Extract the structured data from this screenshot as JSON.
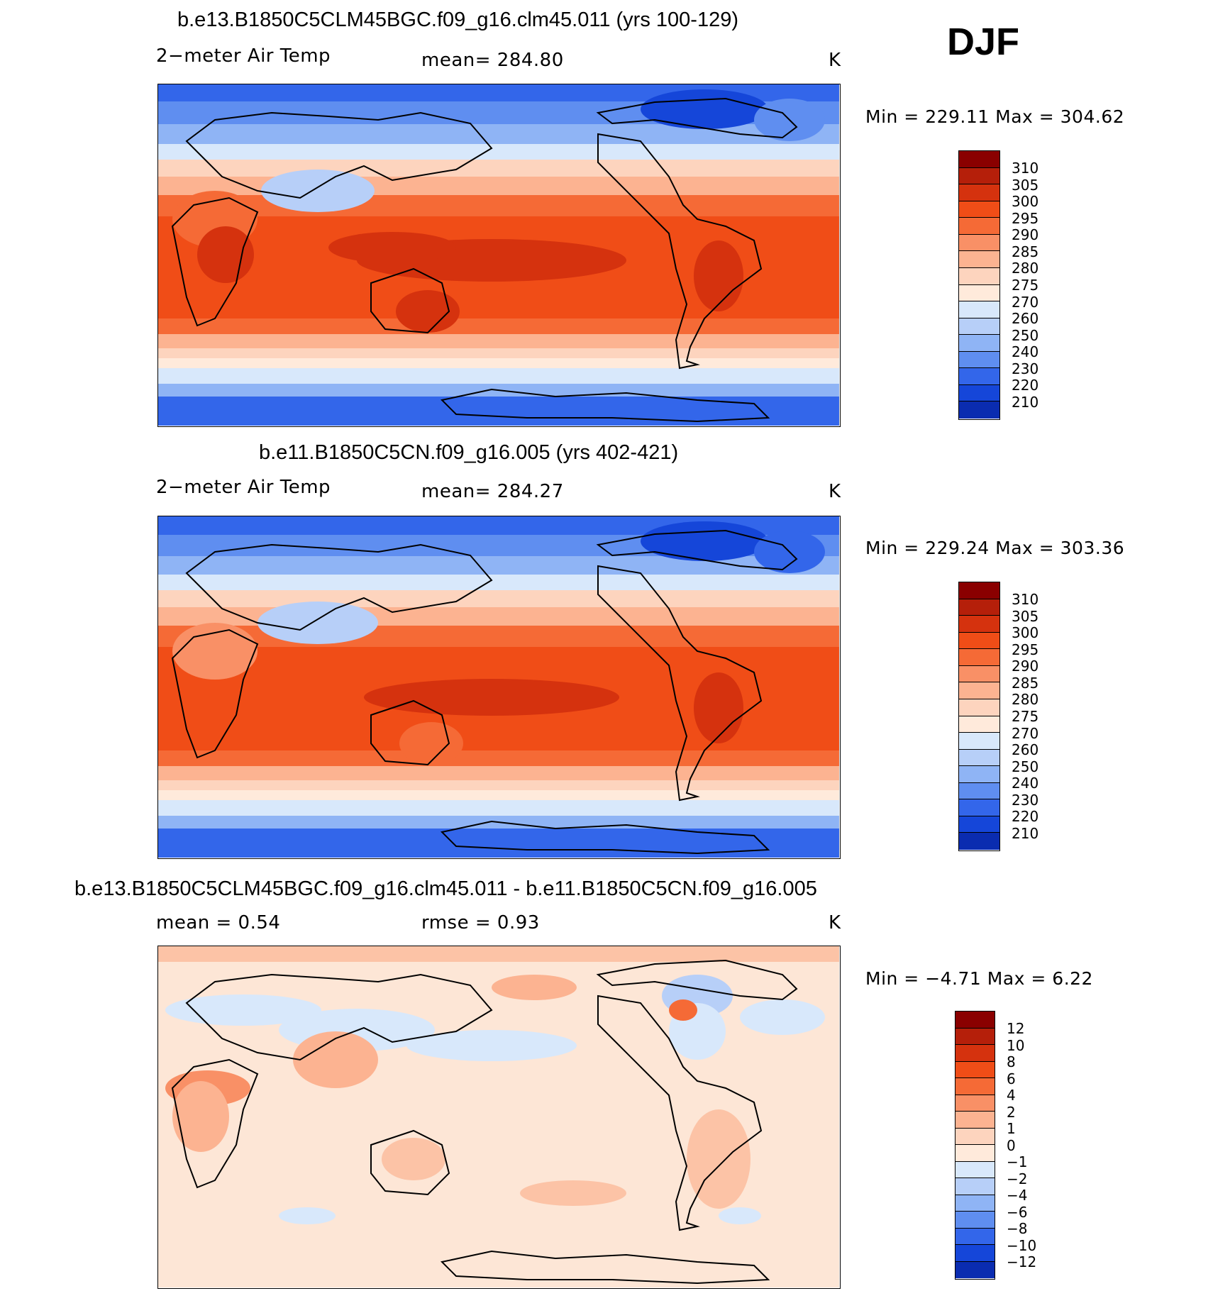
{
  "season": "DJF",
  "panels": [
    {
      "title": "b.e13.B1850C5CLM45BGC.f09_g16.clm45.011 (yrs 100-129)",
      "variable": "2−meter Air Temp",
      "mean": "mean=  284.80",
      "units": "K",
      "minmax": "Min  =  229.11  Max  =  304.62",
      "labels": [
        "310",
        "305",
        "300",
        "295",
        "290",
        "285",
        "280",
        "275",
        "270",
        "260",
        "250",
        "240",
        "230",
        "220",
        "210"
      ],
      "colors": [
        "#8a0000",
        "#b51f0a",
        "#d5320e",
        "#f04d17",
        "#f56a36",
        "#f99066",
        "#fcb391",
        "#fdd4be",
        "#ffeadb",
        "#d8e8fb",
        "#b7cff8",
        "#8fb4f5",
        "#5f8ef0",
        "#3366ea",
        "#1546d9",
        "#0a2cb0",
        "#041a80"
      ],
      "tags": [
        "field-ctrl"
      ]
    },
    {
      "title": "b.e11.B1850C5CN.f09_g16.005 (yrs 402-421)",
      "variable": "2−meter Air Temp",
      "mean": "mean=  284.27",
      "units": "K",
      "minmax": "Min  =  229.24  Max  =  303.36",
      "labels": [
        "310",
        "305",
        "300",
        "295",
        "290",
        "285",
        "280",
        "275",
        "270",
        "260",
        "250",
        "240",
        "230",
        "220",
        "210"
      ],
      "colors": [
        "#8a0000",
        "#b51f0a",
        "#d5320e",
        "#f04d17",
        "#f56a36",
        "#f99066",
        "#fcb391",
        "#fdd4be",
        "#ffeadb",
        "#d8e8fb",
        "#b7cff8",
        "#8fb4f5",
        "#5f8ef0",
        "#3366ea",
        "#1546d9",
        "#0a2cb0",
        "#041a80"
      ],
      "tags": [
        "field-exp"
      ]
    },
    {
      "title": "b.e13.B1850C5CLM45BGC.f09_g16.clm45.011 - b.e11.B1850C5CN.f09_g16.005",
      "mean": "mean =      0.54",
      "rmse": "rmse =      0.93",
      "units": "K",
      "minmax": "Min  =    −4.71  Max  =     6.22",
      "labels": [
        "12",
        "10",
        "8",
        "6",
        "4",
        "2",
        "1",
        "0",
        "−1",
        "−2",
        "−4",
        "−6",
        "−8",
        "−10",
        "−12"
      ],
      "colors": [
        "#8a0000",
        "#b51f0a",
        "#d5320e",
        "#f04d17",
        "#f56a36",
        "#f99066",
        "#fcb391",
        "#fdd4be",
        "#ffeadb",
        "#d8e8fb",
        "#b7cff8",
        "#8fb4f5",
        "#5f8ef0",
        "#3366ea",
        "#1546d9",
        "#0a2cb0",
        "#041a80"
      ],
      "tags": [
        "field-diff"
      ]
    }
  ]
}
